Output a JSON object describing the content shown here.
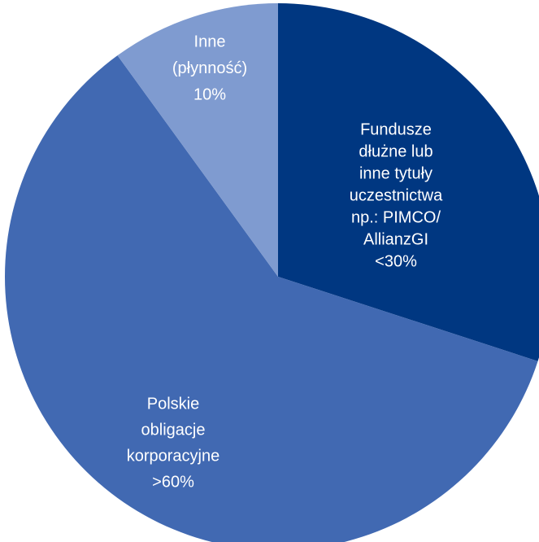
{
  "chart_data": {
    "type": "pie",
    "categories": [
      [
        "Fundusze",
        "dłużne lub",
        "inne tytuły",
        "uczestnictwa",
        "np.: PIMCO/",
        "AllianzGI"
      ],
      [
        "Polskie",
        "obligacje",
        "korporacyjne"
      ],
      [
        "Inne",
        "(płynność)"
      ]
    ],
    "values": [
      30,
      60,
      10
    ],
    "value_labels": [
      "<30%",
      ">60%",
      "10%"
    ],
    "colors": [
      "#003781",
      "#4169b2",
      "#7f9bd0"
    ]
  }
}
